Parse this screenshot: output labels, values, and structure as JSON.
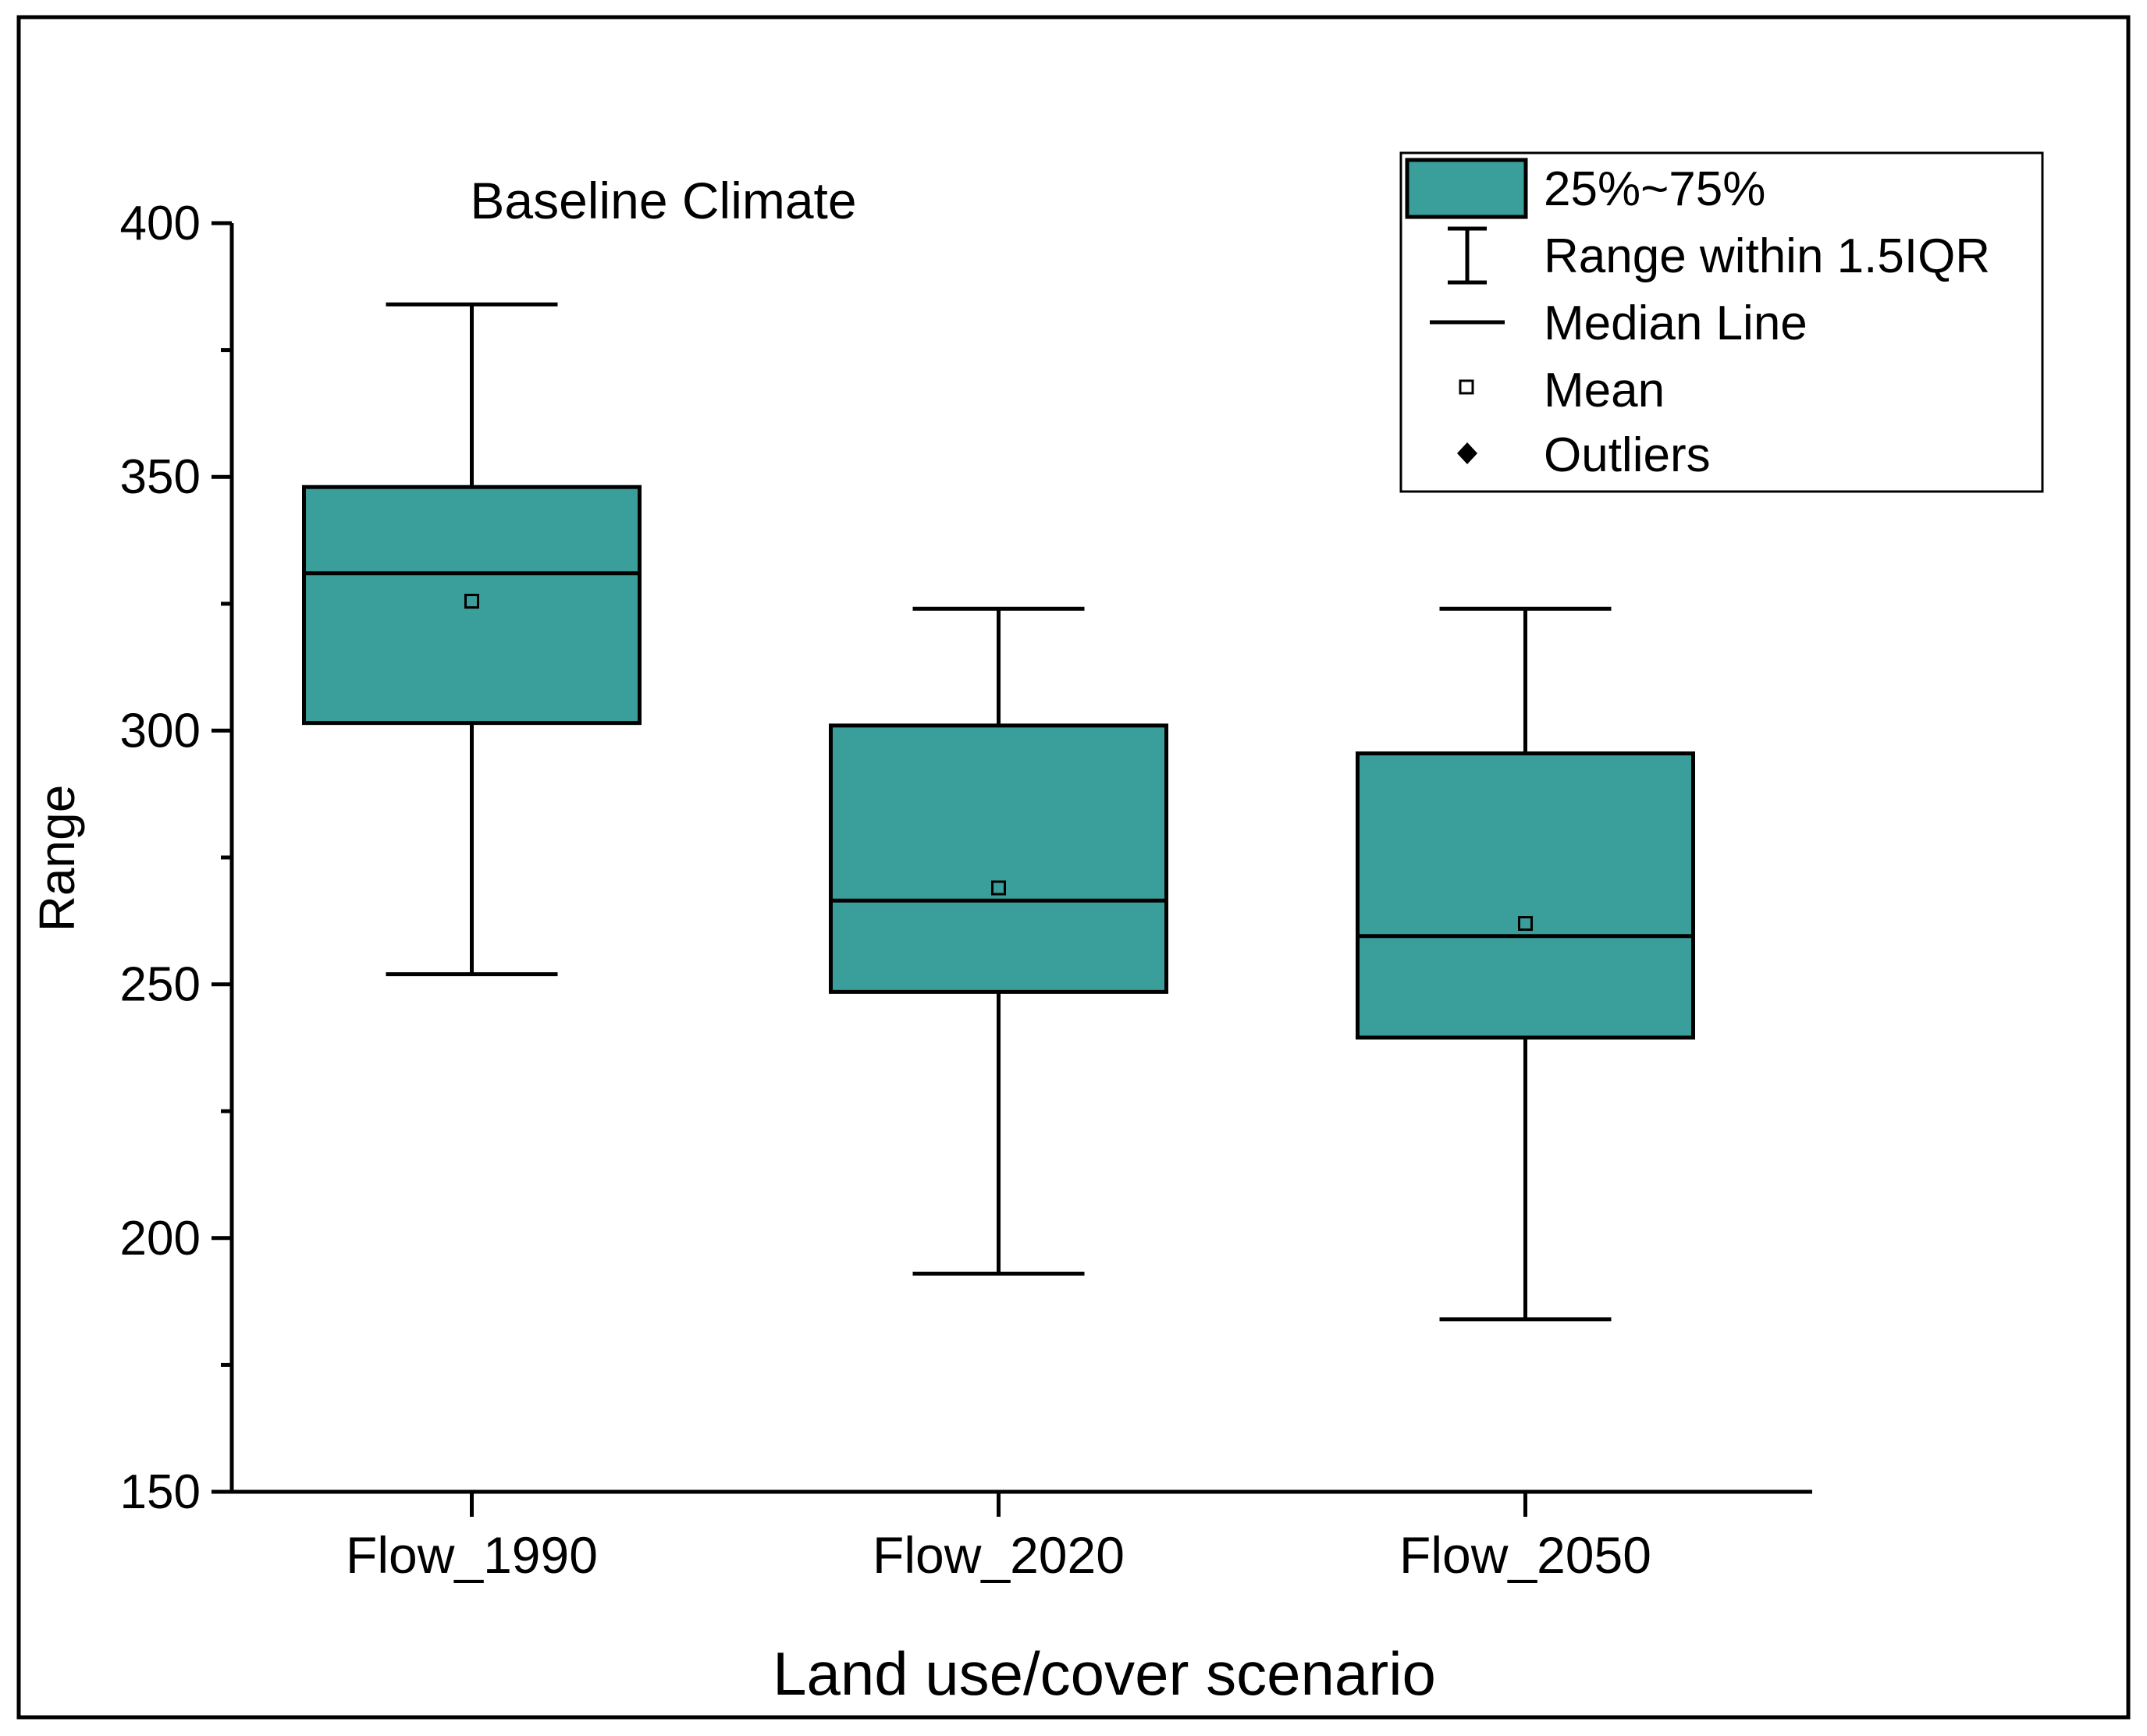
{
  "chart_data": {
    "type": "box",
    "annotation": "Baseline Climate",
    "xlabel": "Land use/cover scenario",
    "ylabel": "Range",
    "ylim": [
      150,
      400
    ],
    "yticks": [
      150,
      200,
      250,
      300,
      350,
      400
    ],
    "yminor_step": 25,
    "categories": [
      "Flow_1990",
      "Flow_2020",
      "Flow_2050"
    ],
    "boxes": [
      {
        "name": "Flow_1990",
        "whisker_low": 252,
        "q1": 301.5,
        "median": 331,
        "q3": 348,
        "whisker_high": 384,
        "mean": 325.5
      },
      {
        "name": "Flow_2020",
        "whisker_low": 193,
        "q1": 248.5,
        "median": 266.5,
        "q3": 301,
        "whisker_high": 324,
        "mean": 269
      },
      {
        "name": "Flow_2050",
        "whisker_low": 184,
        "q1": 239.5,
        "median": 259.5,
        "q3": 295.5,
        "whisker_high": 324,
        "mean": 262
      }
    ],
    "box_color": "#3a9e9b",
    "legend": {
      "position": "top-right",
      "entries": [
        "25%~75%",
        "Range within 1.5IQR",
        "Median Line",
        "Mean",
        "Outliers"
      ]
    }
  }
}
